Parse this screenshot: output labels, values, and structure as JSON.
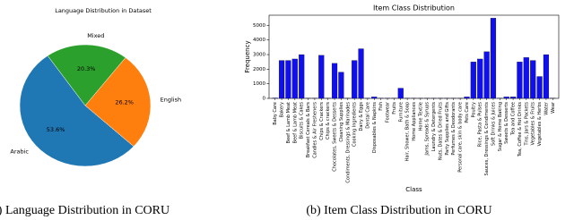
{
  "chart_data": [
    {
      "type": "pie",
      "title": "Language Distribution in Dataset",
      "categories": [
        "Arabic",
        "English",
        "Mixed"
      ],
      "values": [
        53.6,
        26.2,
        20.3
      ],
      "value_labels": [
        "53.6%",
        "26.2%",
        "20.3%"
      ],
      "colors": [
        "#1f77b4",
        "#ff7f0e",
        "#2ca02c"
      ]
    },
    {
      "type": "bar",
      "title": "Item Class Distribution",
      "xlabel": "Class",
      "ylabel": "Frequency",
      "categories": [
        "Baby Care",
        "Bakery",
        "Beef & Lamb Meat",
        "Beef & Lamb Meat",
        "Biscuits & Cakes",
        "Breakfast Cereals & Bars",
        "Candles & Air Fresheners",
        "Chips & Crackers",
        "Chips & crackers",
        "Chocolates, Sweets & Desserts",
        "Cleaning Supplies",
        "Condiments, Dressings & Marinades",
        "Cooking Ingredients",
        "Dairy & Eggs",
        "Dental Care",
        "Disposables & Napkins",
        "Fish",
        "Footwear",
        "Fruits",
        "Furniture",
        "Hair, Shower, Bath & Soap",
        "Home Appliances",
        "Home Textile",
        "Jams, Spreads & Syrups",
        "Laundry & Detergents",
        "Nuts, Dates & Dried Fruits",
        "Party Supplies and Gifts",
        "Perfumes & Deodorants",
        "Personal care, skin & body care",
        "Pets Care",
        "Poultry",
        "Rice, Pasta & Pulses",
        "Sauces, Dressings & Condiments",
        "Soft Drinks & Juices",
        "Sugar & Home Baking",
        "Sweets & Desserts",
        "Tea and Coffee",
        "Tea, Coffee & Hot Drinks",
        "Tins, Jars & Packets",
        "Vegetables & Fruits",
        "Vegetables & Herbs",
        "Water",
        "Wear"
      ],
      "values": [
        30,
        2600,
        2600,
        2700,
        3000,
        20,
        20,
        2950,
        20,
        2400,
        1800,
        20,
        2600,
        3400,
        20,
        100,
        20,
        20,
        20,
        700,
        20,
        20,
        10,
        20,
        20,
        20,
        20,
        20,
        20,
        100,
        2500,
        2700,
        3200,
        5500,
        20,
        100,
        100,
        2500,
        2800,
        2600,
        1500,
        3000,
        20
      ],
      "color": "#1010ee",
      "ylim": [
        0,
        5700
      ],
      "yticks": [
        0,
        1000,
        2000,
        3000,
        4000,
        5000
      ]
    }
  ],
  "captions": [
    "(a) Language Distribution in CORU",
    "(b) Item Class Distribution in CORU"
  ]
}
